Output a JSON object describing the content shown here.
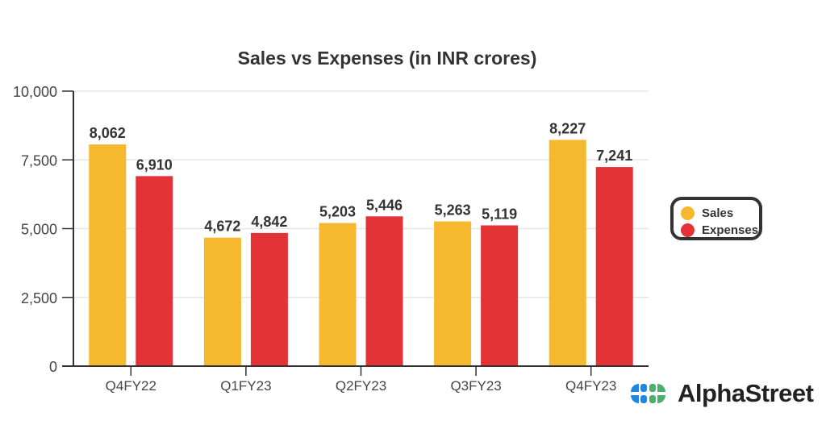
{
  "chart_data": {
    "type": "bar",
    "title": "Sales vs Expenses (in INR crores)",
    "xlabel": "",
    "ylabel": "",
    "ylim": [
      0,
      10000
    ],
    "yticks": [
      "0",
      "2,500",
      "5,000",
      "7,500",
      "10,000"
    ],
    "ytick_values": [
      0,
      2500,
      5000,
      7500,
      10000
    ],
    "grid": true,
    "legend_placement": "right",
    "categories": [
      "Q4FY22",
      "Q1FY23",
      "Q2FY23",
      "Q3FY23",
      "Q4FY23"
    ],
    "series": [
      {
        "name": "Sales",
        "color": "#F5B82E",
        "values": [
          8062,
          4672,
          5203,
          5263,
          8227
        ],
        "labels": [
          "8,062",
          "4,672",
          "5,203",
          "5,263",
          "8,227"
        ]
      },
      {
        "name": "Expenses",
        "color": "#E33336",
        "values": [
          6910,
          4842,
          5446,
          5119,
          7241
        ],
        "labels": [
          "6,910",
          "4,842",
          "5,446",
          "5,119",
          "7,241"
        ]
      }
    ]
  },
  "branding": {
    "logo_text": "AlphaStreet"
  }
}
